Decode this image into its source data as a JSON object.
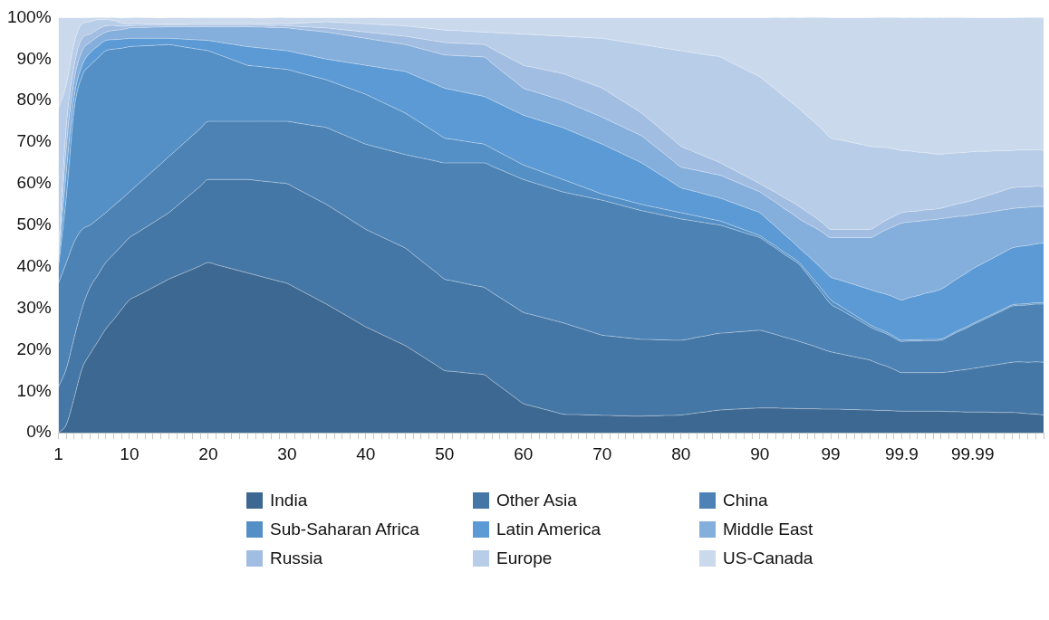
{
  "chart_data": {
    "type": "area",
    "stacked": true,
    "legend": "bottom",
    "grid": false,
    "ylim": [
      0,
      100
    ],
    "yticks": [
      {
        "value": 0,
        "label": "0%"
      },
      {
        "value": 10,
        "label": "10%"
      },
      {
        "value": 20,
        "label": "20%"
      },
      {
        "value": 30,
        "label": "30%"
      },
      {
        "value": 40,
        "label": "40%"
      },
      {
        "value": 50,
        "label": "50%"
      },
      {
        "value": 60,
        "label": "60%"
      },
      {
        "value": 70,
        "label": "70%"
      },
      {
        "value": 80,
        "label": "80%"
      },
      {
        "value": 90,
        "label": "90%"
      },
      {
        "value": 100,
        "label": "100%"
      }
    ],
    "categories": [
      "1",
      null,
      null,
      null,
      null,
      null,
      null,
      null,
      null,
      "10",
      null,
      null,
      null,
      null,
      null,
      null,
      null,
      null,
      null,
      "20",
      null,
      null,
      null,
      null,
      null,
      null,
      null,
      null,
      null,
      "30",
      null,
      null,
      null,
      null,
      null,
      null,
      null,
      null,
      null,
      "40",
      null,
      null,
      null,
      null,
      null,
      null,
      null,
      null,
      null,
      "50",
      null,
      null,
      null,
      null,
      null,
      null,
      null,
      null,
      null,
      "60",
      null,
      null,
      null,
      null,
      null,
      null,
      null,
      null,
      null,
      "70",
      null,
      null,
      null,
      null,
      null,
      null,
      null,
      null,
      null,
      "80",
      null,
      null,
      null,
      null,
      null,
      null,
      null,
      null,
      null,
      "90",
      null,
      null,
      null,
      null,
      null,
      null,
      null,
      null,
      "99",
      null,
      null,
      null,
      null,
      null,
      null,
      null,
      null,
      "99.9",
      null,
      null,
      null,
      null,
      null,
      null,
      null,
      null,
      "99.99",
      null,
      null,
      null,
      null,
      null,
      null,
      null,
      null,
      null
    ],
    "series": [
      {
        "name": "India",
        "color": "#3d6891",
        "values": [
          0,
          2,
          8.5,
          15.5,
          19,
          22,
          25,
          27.3,
          29.7,
          32,
          33,
          34,
          35,
          36,
          37,
          37.8,
          38.6,
          39.4,
          40.2,
          41,
          40.5,
          40,
          39.5,
          39,
          38.5,
          38,
          37.5,
          37,
          36.5,
          36,
          35,
          34,
          33,
          32,
          31,
          29.9,
          28.8,
          27.7,
          26.6,
          25.5,
          24.6,
          23.7,
          22.8,
          21.9,
          21,
          19.8,
          18.6,
          17.4,
          16.2,
          15,
          14.8,
          14.6,
          14.4,
          14.2,
          14,
          12.6,
          11.2,
          9.8,
          8.4,
          7,
          6.5,
          6,
          5.5,
          5,
          4.5,
          4.4,
          4.4,
          4.3,
          4.3,
          4.2,
          4.2,
          4.1,
          4.1,
          4,
          4,
          4.1,
          4.1,
          4.2,
          4.2,
          4.3,
          4.5,
          4.8,
          5,
          5.3,
          5.5,
          5.6,
          5.7,
          5.8,
          5.9,
          6,
          6,
          6,
          5.9,
          5.9,
          5.8,
          5.8,
          5.8,
          5.7,
          5.7,
          5.7,
          5.6,
          5.6,
          5.5,
          5.5,
          5.4,
          5.4,
          5.3,
          5.2,
          5.2,
          5.2,
          5.2,
          5.2,
          5.2,
          5.1,
          5.1,
          5,
          5,
          5,
          5,
          4.9,
          4.9,
          4.9,
          4.8,
          4.6,
          4.5,
          4.3
        ]
      },
      {
        "name": "Other Asia",
        "color": "#4577a6",
        "values": [
          11,
          13.5,
          14.5,
          14.5,
          16,
          16,
          16,
          15.7,
          15.3,
          15,
          15.2,
          15.4,
          15.6,
          15.8,
          16,
          16.8,
          17.6,
          18.4,
          19.2,
          20,
          20.5,
          21,
          21.5,
          22,
          22.5,
          22.8,
          23.1,
          23.4,
          23.7,
          24,
          24,
          24,
          24,
          24,
          24,
          23.9,
          23.8,
          23.7,
          23.6,
          23.5,
          23.5,
          23.5,
          23.5,
          23.5,
          23.5,
          23.2,
          22.9,
          22.6,
          22.3,
          22,
          21.8,
          21.6,
          21.4,
          21.2,
          21,
          21.2,
          21.4,
          21.6,
          21.8,
          22,
          22,
          22,
          22,
          22,
          22,
          21.5,
          20.9,
          20.4,
          19.8,
          19.3,
          19.1,
          19,
          18.8,
          18.7,
          18.5,
          18.4,
          18.3,
          18.2,
          18.1,
          18,
          18.1,
          18.2,
          18.3,
          18.4,
          18.5,
          18.5,
          18.6,
          18.6,
          18.7,
          18.7,
          18.2,
          17.7,
          17.2,
          16.7,
          16.2,
          15.6,
          15,
          14.4,
          13.8,
          13.4,
          13.1,
          12.7,
          12.4,
          12,
          11.3,
          10.7,
          10,
          9.3,
          9.3,
          9.3,
          9.3,
          9.3,
          9.3,
          9.6,
          9.9,
          10.2,
          10.5,
          10.8,
          11.1,
          11.5,
          11.8,
          12.1,
          12.3,
          12.4,
          12.6,
          12.7
        ]
      },
      {
        "name": "China",
        "color": "#4d82b5",
        "values": [
          25,
          25.5,
          23,
          19,
          15,
          13.5,
          12,
          11.7,
          11.3,
          11,
          11.5,
          12,
          12.5,
          13,
          13.5,
          13.6,
          13.7,
          13.8,
          13.9,
          14,
          14,
          14,
          14,
          14,
          14,
          14.2,
          14.4,
          14.6,
          14.8,
          15,
          15.7,
          16.4,
          17.1,
          17.8,
          18.5,
          18.9,
          19.3,
          19.7,
          20.1,
          20.5,
          20.9,
          21.3,
          21.7,
          22.1,
          22.5,
          23.6,
          24.7,
          25.8,
          26.9,
          28,
          28.4,
          28.8,
          29.2,
          29.6,
          30,
          30.4,
          30.8,
          31.2,
          31.6,
          32,
          31.9,
          31.8,
          31.7,
          31.6,
          31.5,
          31.7,
          31.9,
          32.1,
          32.3,
          32.5,
          32.2,
          31.9,
          31.6,
          31.3,
          31,
          30.6,
          30.3,
          29.9,
          29.6,
          29.2,
          28.6,
          27.9,
          27.3,
          26.6,
          26,
          25.3,
          24.5,
          23.8,
          23,
          22.3,
          21.5,
          20.8,
          20,
          19.3,
          18.5,
          16.8,
          15,
          13.3,
          11.5,
          10.8,
          10.1,
          9.4,
          8.7,
          8,
          7.9,
          7.8,
          7.6,
          7.5,
          7.6,
          7.6,
          7.7,
          7.7,
          7.8,
          8.5,
          9.2,
          9.8,
          10.5,
          11.1,
          11.7,
          12.3,
          12.9,
          13.5,
          13.6,
          13.8,
          13.9,
          14
        ]
      },
      {
        "name": "Sub-Saharan Africa",
        "color": "#5490c6",
        "values": [
          4,
          16,
          32,
          37,
          38.5,
          38.8,
          39,
          37.7,
          36.3,
          35,
          33.4,
          31.8,
          30.2,
          28.6,
          27,
          25,
          23,
          21,
          19,
          17,
          16.3,
          15.6,
          14.9,
          14.2,
          13.5,
          13.3,
          13.1,
          12.9,
          12.7,
          12.5,
          12.3,
          12.1,
          11.9,
          11.7,
          11.5,
          11.6,
          11.7,
          11.8,
          11.9,
          12,
          11.6,
          11.2,
          10.8,
          10.4,
          10,
          9.2,
          8.4,
          7.6,
          6.8,
          6,
          5.7,
          5.4,
          5.1,
          4.8,
          4.5,
          4.3,
          4.1,
          3.9,
          3.7,
          3.5,
          3.4,
          3.3,
          3.2,
          3.1,
          3,
          2.7,
          2.4,
          2.1,
          1.8,
          1.5,
          1.5,
          1.5,
          1.5,
          1.5,
          1.5,
          1.5,
          1.5,
          1.5,
          1.5,
          1.5,
          1.4,
          1.3,
          1.2,
          1.1,
          1,
          0.9,
          0.8,
          0.7,
          0.6,
          0.5,
          0.5,
          0.5,
          0.5,
          0.5,
          0.5,
          0.6,
          0.8,
          0.9,
          1,
          0.9,
          0.8,
          0.7,
          0.6,
          0.5,
          0.5,
          0.4,
          0.4,
          0.3,
          0.3,
          0.3,
          0.3,
          0.3,
          0.3,
          0.3,
          0.3,
          0.3,
          0.3,
          0.3,
          0.3,
          0.3,
          0.3,
          0.3,
          0.3,
          0.3,
          0.3,
          0.3
        ]
      },
      {
        "name": "Latin America",
        "color": "#5b9ad5",
        "values": [
          1,
          6,
          3,
          2.5,
          3,
          2.8,
          2.5,
          2.3,
          2.2,
          2,
          1.9,
          1.8,
          1.7,
          1.6,
          1.5,
          1.7,
          1.9,
          2.1,
          2.3,
          2.5,
          2.9,
          3.3,
          3.7,
          4.1,
          4.5,
          4.5,
          4.5,
          4.5,
          4.5,
          4.5,
          4.6,
          4.7,
          4.8,
          4.9,
          5,
          5.4,
          5.8,
          6.2,
          6.6,
          7,
          7.6,
          8.2,
          8.8,
          9.4,
          10,
          10.4,
          10.8,
          11.2,
          11.6,
          12,
          11.9,
          11.8,
          11.7,
          11.6,
          11.5,
          11.6,
          11.7,
          11.8,
          11.9,
          12,
          12.1,
          12.2,
          12.3,
          12.4,
          12.5,
          12.4,
          12.3,
          12.2,
          12.1,
          12,
          11.6,
          11.2,
          10.8,
          10.4,
          10,
          9.2,
          8.4,
          7.6,
          6.8,
          6,
          5.9,
          5.8,
          5.7,
          5.6,
          5.5,
          5.5,
          5.5,
          5.5,
          5.5,
          5.5,
          5.1,
          4.7,
          4.3,
          3.9,
          3.5,
          4,
          4.5,
          5,
          5.5,
          6.1,
          6.7,
          7.3,
          7.9,
          8.5,
          8.8,
          9.1,
          9.4,
          9.7,
          10.2,
          10.6,
          11.1,
          11.5,
          12,
          12.3,
          12.6,
          12.9,
          13.2,
          13.3,
          13.4,
          13.5,
          13.6,
          13.7,
          13.9,
          14,
          14.2,
          14.4
        ]
      },
      {
        "name": "Middle East",
        "color": "#84aedb",
        "values": [
          1,
          6,
          4,
          3.5,
          2.5,
          2.3,
          2,
          2.2,
          2.3,
          2.5,
          2.6,
          2.6,
          2.7,
          2.7,
          2.8,
          2.9,
          3,
          3.1,
          3.2,
          3.3,
          3.6,
          3.9,
          4.2,
          4.5,
          4.8,
          4.9,
          5.1,
          5.2,
          5.4,
          5.5,
          5.7,
          5.9,
          6.1,
          6.3,
          6.5,
          6.5,
          6.5,
          6.5,
          6.5,
          6.5,
          6.5,
          6.5,
          6.5,
          6.5,
          6.5,
          6.8,
          7.1,
          7.4,
          7.7,
          8,
          8.3,
          8.6,
          8.9,
          9.2,
          9.5,
          8.9,
          8.3,
          7.7,
          7.1,
          6.5,
          6.5,
          6.5,
          6.5,
          6.5,
          6.5,
          6.5,
          6.5,
          6.5,
          6.5,
          6.5,
          6.5,
          6.5,
          6.5,
          6.5,
          6.5,
          6.2,
          5.9,
          5.6,
          5.3,
          5,
          5.1,
          5.2,
          5.3,
          5.4,
          5.5,
          5.4,
          5.3,
          5.2,
          5.1,
          5,
          5.4,
          5.8,
          6.2,
          6.6,
          7,
          7.6,
          8.3,
          8.9,
          9.5,
          10.1,
          10.7,
          11.3,
          11.9,
          12.5,
          14,
          15.5,
          17,
          18.5,
          18.2,
          17.9,
          17.6,
          17.3,
          17,
          16,
          15,
          14,
          13,
          12.3,
          11.6,
          10.9,
          10.2,
          9.5,
          9.3,
          9.2,
          9,
          8.8
        ]
      },
      {
        "name": "Russia",
        "color": "#a2bde2",
        "values": [
          2,
          5,
          3.5,
          3,
          2,
          1.8,
          1.5,
          1.2,
          0.8,
          0.5,
          0.5,
          0.5,
          0.4,
          0.4,
          0.4,
          0.4,
          0.4,
          0.4,
          0.4,
          0.4,
          0.4,
          0.4,
          0.4,
          0.4,
          0.4,
          0.4,
          0.4,
          0.4,
          0.5,
          0.5,
          0.6,
          0.7,
          0.8,
          0.9,
          1,
          1.1,
          1.2,
          1.3,
          1.4,
          1.5,
          1.6,
          1.7,
          1.8,
          1.9,
          2,
          2.2,
          2.4,
          2.6,
          2.8,
          3,
          3,
          3,
          3,
          3,
          3,
          3.5,
          4,
          4.5,
          5,
          5.5,
          5.7,
          5.9,
          6.1,
          6.3,
          6.5,
          6.6,
          6.7,
          6.8,
          6.9,
          7,
          6.7,
          6.4,
          6.1,
          5.8,
          5.5,
          5.4,
          5.3,
          5.2,
          5.1,
          5,
          4.6,
          4.2,
          3.8,
          3.4,
          3,
          2.8,
          2.6,
          2.4,
          2.2,
          2,
          2.2,
          2.4,
          2.6,
          2.8,
          3,
          2.8,
          2.5,
          2.3,
          2,
          2,
          2,
          2,
          2,
          2,
          2.1,
          2.3,
          2.4,
          2.5,
          2.5,
          2.5,
          2.5,
          2.5,
          2.5,
          2.8,
          3,
          3.3,
          3.5,
          3.8,
          4.1,
          4.4,
          4.7,
          5,
          5,
          4.9,
          4.9,
          4.8
        ]
      },
      {
        "name": "Europe",
        "color": "#b8cde8",
        "values": [
          34,
          10,
          5.5,
          3.5,
          3,
          2.3,
          1.5,
          1.2,
          0.8,
          0.5,
          0.5,
          0.4,
          0.4,
          0.3,
          0.3,
          0.3,
          0.3,
          0.4,
          0.4,
          0.4,
          0.4,
          0.4,
          0.4,
          0.4,
          0.4,
          0.4,
          0.4,
          0.5,
          0.5,
          0.5,
          0.7,
          0.9,
          1.1,
          1.3,
          1.5,
          1.6,
          1.7,
          1.8,
          1.9,
          2,
          2.1,
          2.2,
          2.3,
          2.4,
          2.5,
          2.6,
          2.7,
          2.8,
          2.9,
          3,
          3,
          3,
          3,
          3,
          3,
          3.9,
          4.8,
          5.7,
          6.6,
          7.5,
          7.8,
          8.1,
          8.4,
          8.7,
          9,
          9.6,
          10.2,
          10.8,
          11.4,
          12,
          12.9,
          13.8,
          14.7,
          15.6,
          16.5,
          17.8,
          19.1,
          20.4,
          21.7,
          23,
          23.5,
          24,
          24.5,
          25,
          25.5,
          25.5,
          25.6,
          25.6,
          25.7,
          25.7,
          25.3,
          24.8,
          24.4,
          23.9,
          23.5,
          23.1,
          22.8,
          22.4,
          22,
          21.6,
          21.2,
          20.8,
          20.4,
          20,
          18.8,
          17.5,
          16.3,
          15,
          14.6,
          14.2,
          13.8,
          13.4,
          13,
          12.7,
          12.3,
          12,
          11.7,
          11.2,
          10.6,
          10.1,
          9.5,
          9,
          8.9,
          8.9,
          8.8,
          8.7
        ]
      },
      {
        "name": "US-Canada",
        "color": "#cad9ec",
        "values": [
          22,
          16,
          6,
          1.5,
          1,
          0.8,
          0.5,
          0.8,
          1.2,
          1.5,
          1.5,
          1.5,
          1.5,
          1.5,
          1.5,
          1.5,
          1.5,
          1.4,
          1.4,
          1.4,
          1.4,
          1.4,
          1.4,
          1.4,
          1.4,
          1.4,
          1.4,
          1.5,
          1.5,
          1.5,
          1.4,
          1.3,
          1.2,
          1.1,
          1,
          1.1,
          1.2,
          1.3,
          1.4,
          1.5,
          1.6,
          1.7,
          1.8,
          1.9,
          2,
          2.2,
          2.4,
          2.6,
          2.8,
          3,
          3.1,
          3.2,
          3.3,
          3.4,
          3.5,
          3.6,
          3.7,
          3.8,
          3.9,
          4,
          4.1,
          4.2,
          4.3,
          4.4,
          4.5,
          4.6,
          4.7,
          4.8,
          4.9,
          5,
          5.3,
          5.6,
          5.9,
          6.2,
          6.5,
          6.8,
          7.1,
          7.4,
          7.7,
          8,
          8.3,
          8.6,
          8.9,
          9.2,
          9.5,
          10.5,
          11.4,
          12.4,
          13.3,
          14.3,
          15.8,
          17.4,
          18.9,
          20.5,
          22,
          23.8,
          25.5,
          27.3,
          29,
          29.4,
          29.8,
          30.2,
          30.6,
          31,
          31.3,
          31.5,
          31.8,
          32,
          32.2,
          32.4,
          32.6,
          32.8,
          33,
          32.8,
          32.7,
          32.5,
          32.3,
          32.2,
          32.2,
          32.1,
          32.1,
          32,
          32,
          32,
          32,
          32
        ]
      }
    ]
  }
}
